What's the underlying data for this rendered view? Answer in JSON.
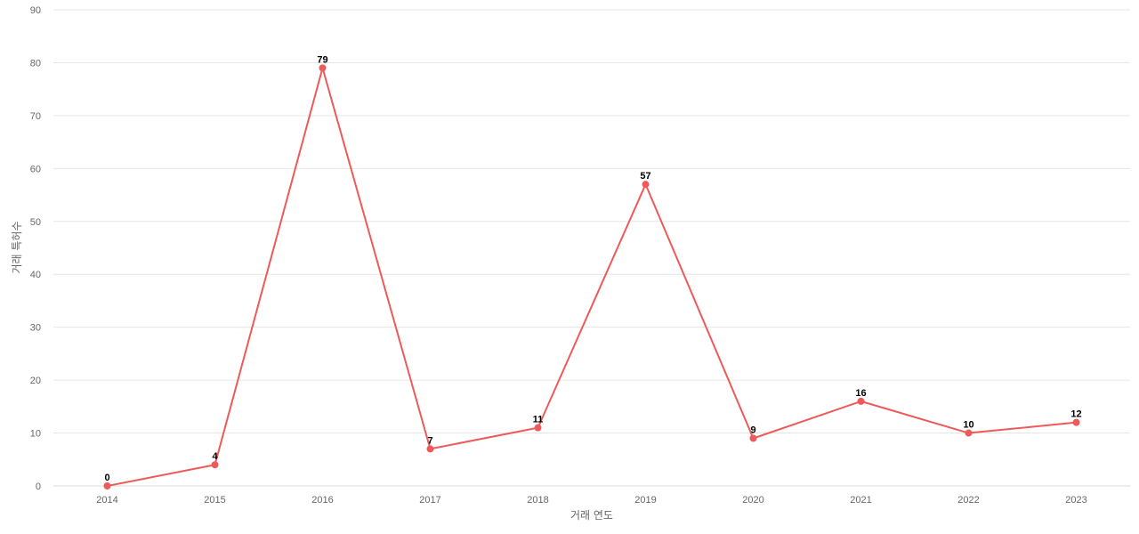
{
  "chart_data": {
    "type": "line",
    "title": "",
    "xlabel": "거래 연도",
    "ylabel": "거래 특허수",
    "ylim": [
      0,
      90
    ],
    "yticks": [
      0,
      10,
      20,
      30,
      40,
      50,
      60,
      70,
      80,
      90
    ],
    "categories": [
      "2014",
      "2015",
      "2016",
      "2017",
      "2018",
      "2019",
      "2020",
      "2021",
      "2022",
      "2023"
    ],
    "series": [
      {
        "values": [
          0,
          4,
          79,
          7,
          11,
          57,
          9,
          16,
          10,
          12
        ],
        "color": "#ee5a5a"
      }
    ],
    "grid": true,
    "legend": "none",
    "data_labels": true
  }
}
